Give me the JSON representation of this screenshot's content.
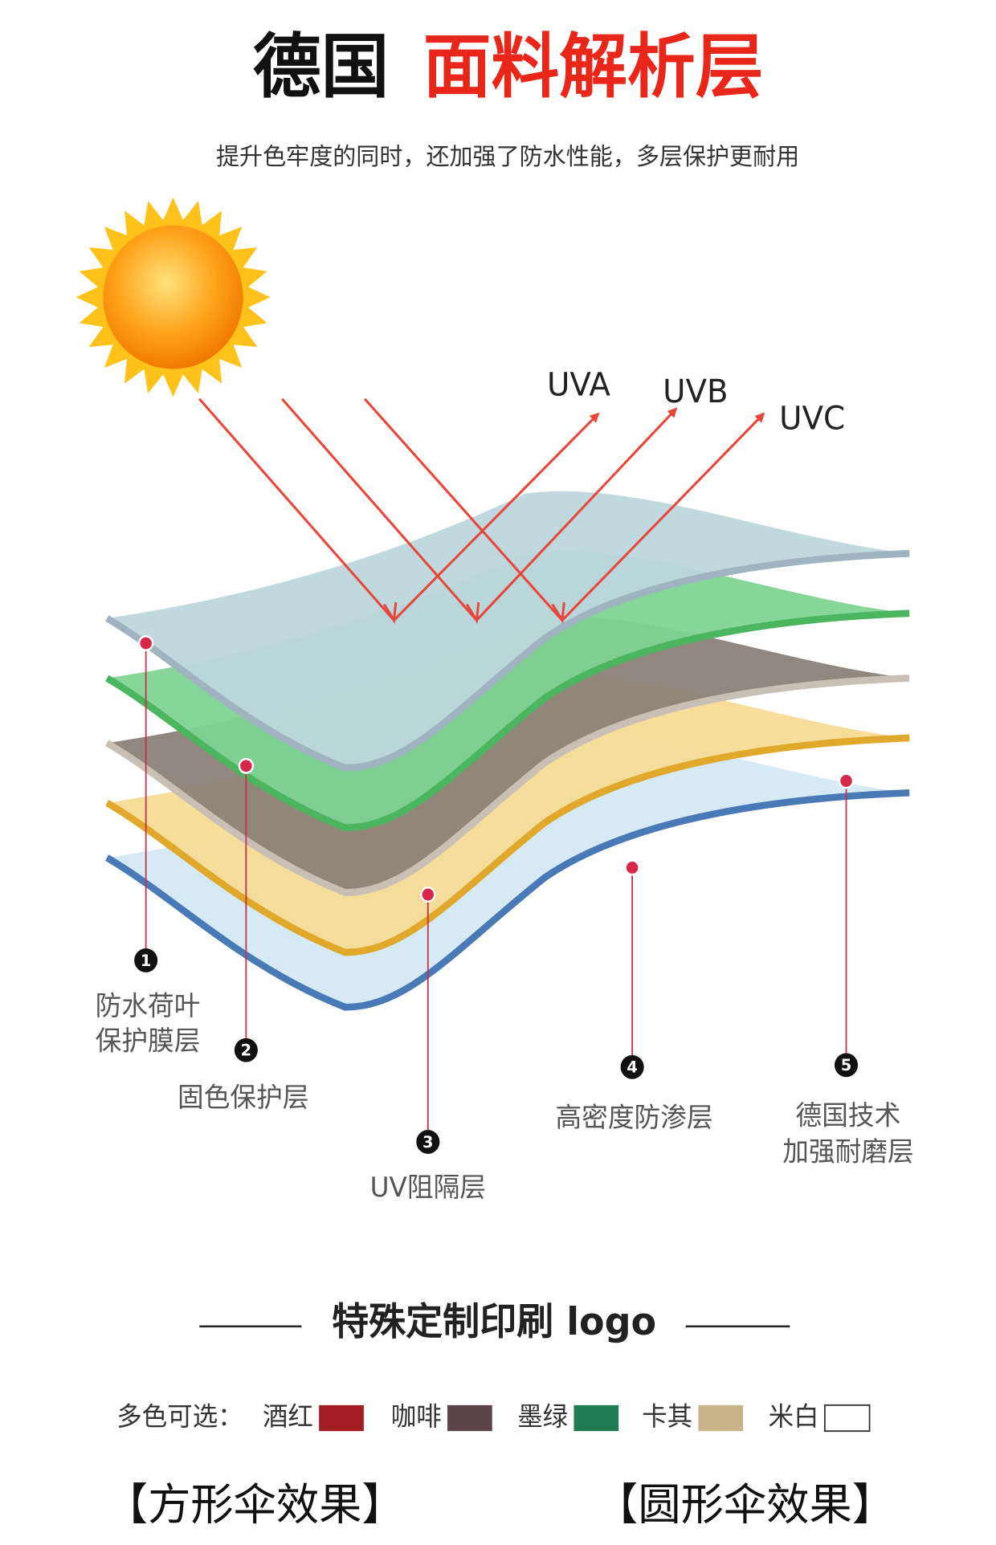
{
  "header": {
    "title_black": "德国",
    "title_red": "面料解析层",
    "subtitle": "提升色牢度的同时，还加强了防水性能，多层保护更耐用"
  },
  "rays": [
    "UVA",
    "UVB",
    "UVC"
  ],
  "layers": [
    {
      "number": "1",
      "label": [
        "防水荷叶",
        "保护膜层"
      ]
    },
    {
      "number": "2",
      "label": [
        "固色保护层"
      ]
    },
    {
      "number": "3",
      "label": [
        "UV阻隔层"
      ]
    },
    {
      "number": "4",
      "label": [
        "高密度防渗层"
      ]
    },
    {
      "number": "5",
      "label": [
        "德国技术",
        "加强耐磨层"
      ]
    }
  ],
  "custom": {
    "title": "特殊定制印刷 logo",
    "colors_label": "多色可选：",
    "colors": [
      {
        "name": "酒红",
        "color": "#a11d22"
      },
      {
        "name": "咖啡",
        "color": "#5b4448"
      },
      {
        "name": "墨绿",
        "color": "#1f7a4f"
      },
      {
        "name": "卡其",
        "color": "#c9b38a"
      },
      {
        "name": "米白",
        "color": "#ffffff"
      }
    ]
  },
  "footer": [
    "【方形伞效果】",
    "【圆形伞效果】"
  ]
}
